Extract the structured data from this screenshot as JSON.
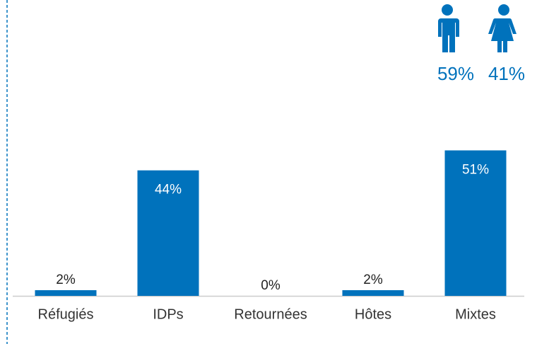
{
  "chart_data": {
    "type": "bar",
    "categories": [
      "Réfugiés",
      "IDPs",
      "Retournées",
      "Hôtes",
      "Mixtes"
    ],
    "values": [
      2,
      44,
      0,
      2,
      51
    ],
    "value_labels": [
      "2%",
      "44%",
      "0%",
      "2%",
      "51%"
    ],
    "color": "#0072bc"
  },
  "gender": [
    "59%",
    "41%"
  ]
}
